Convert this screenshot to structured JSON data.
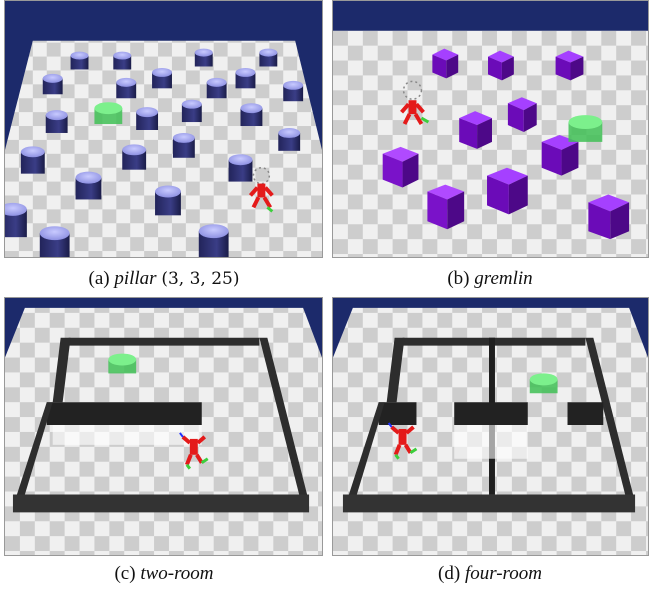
{
  "captions": {
    "a": {
      "letter": "(a)",
      "name": "pillar",
      "params": "(3, 3, 25)"
    },
    "b": {
      "letter": "(b)",
      "name": "gremlin"
    },
    "c": {
      "letter": "(c)",
      "name": "two-room"
    },
    "d": {
      "letter": "(d)",
      "name": "four-room"
    }
  },
  "colors": {
    "sky": "#1c2a6b",
    "floor_light": "#f2f2f2",
    "floor_dark": "#cfcfcf",
    "pillar": "#8f93e6",
    "gremlin": "#7a12c9",
    "goal": "#4fe06a",
    "agent": "#e41a1a",
    "wall": "#2d2d2d"
  }
}
